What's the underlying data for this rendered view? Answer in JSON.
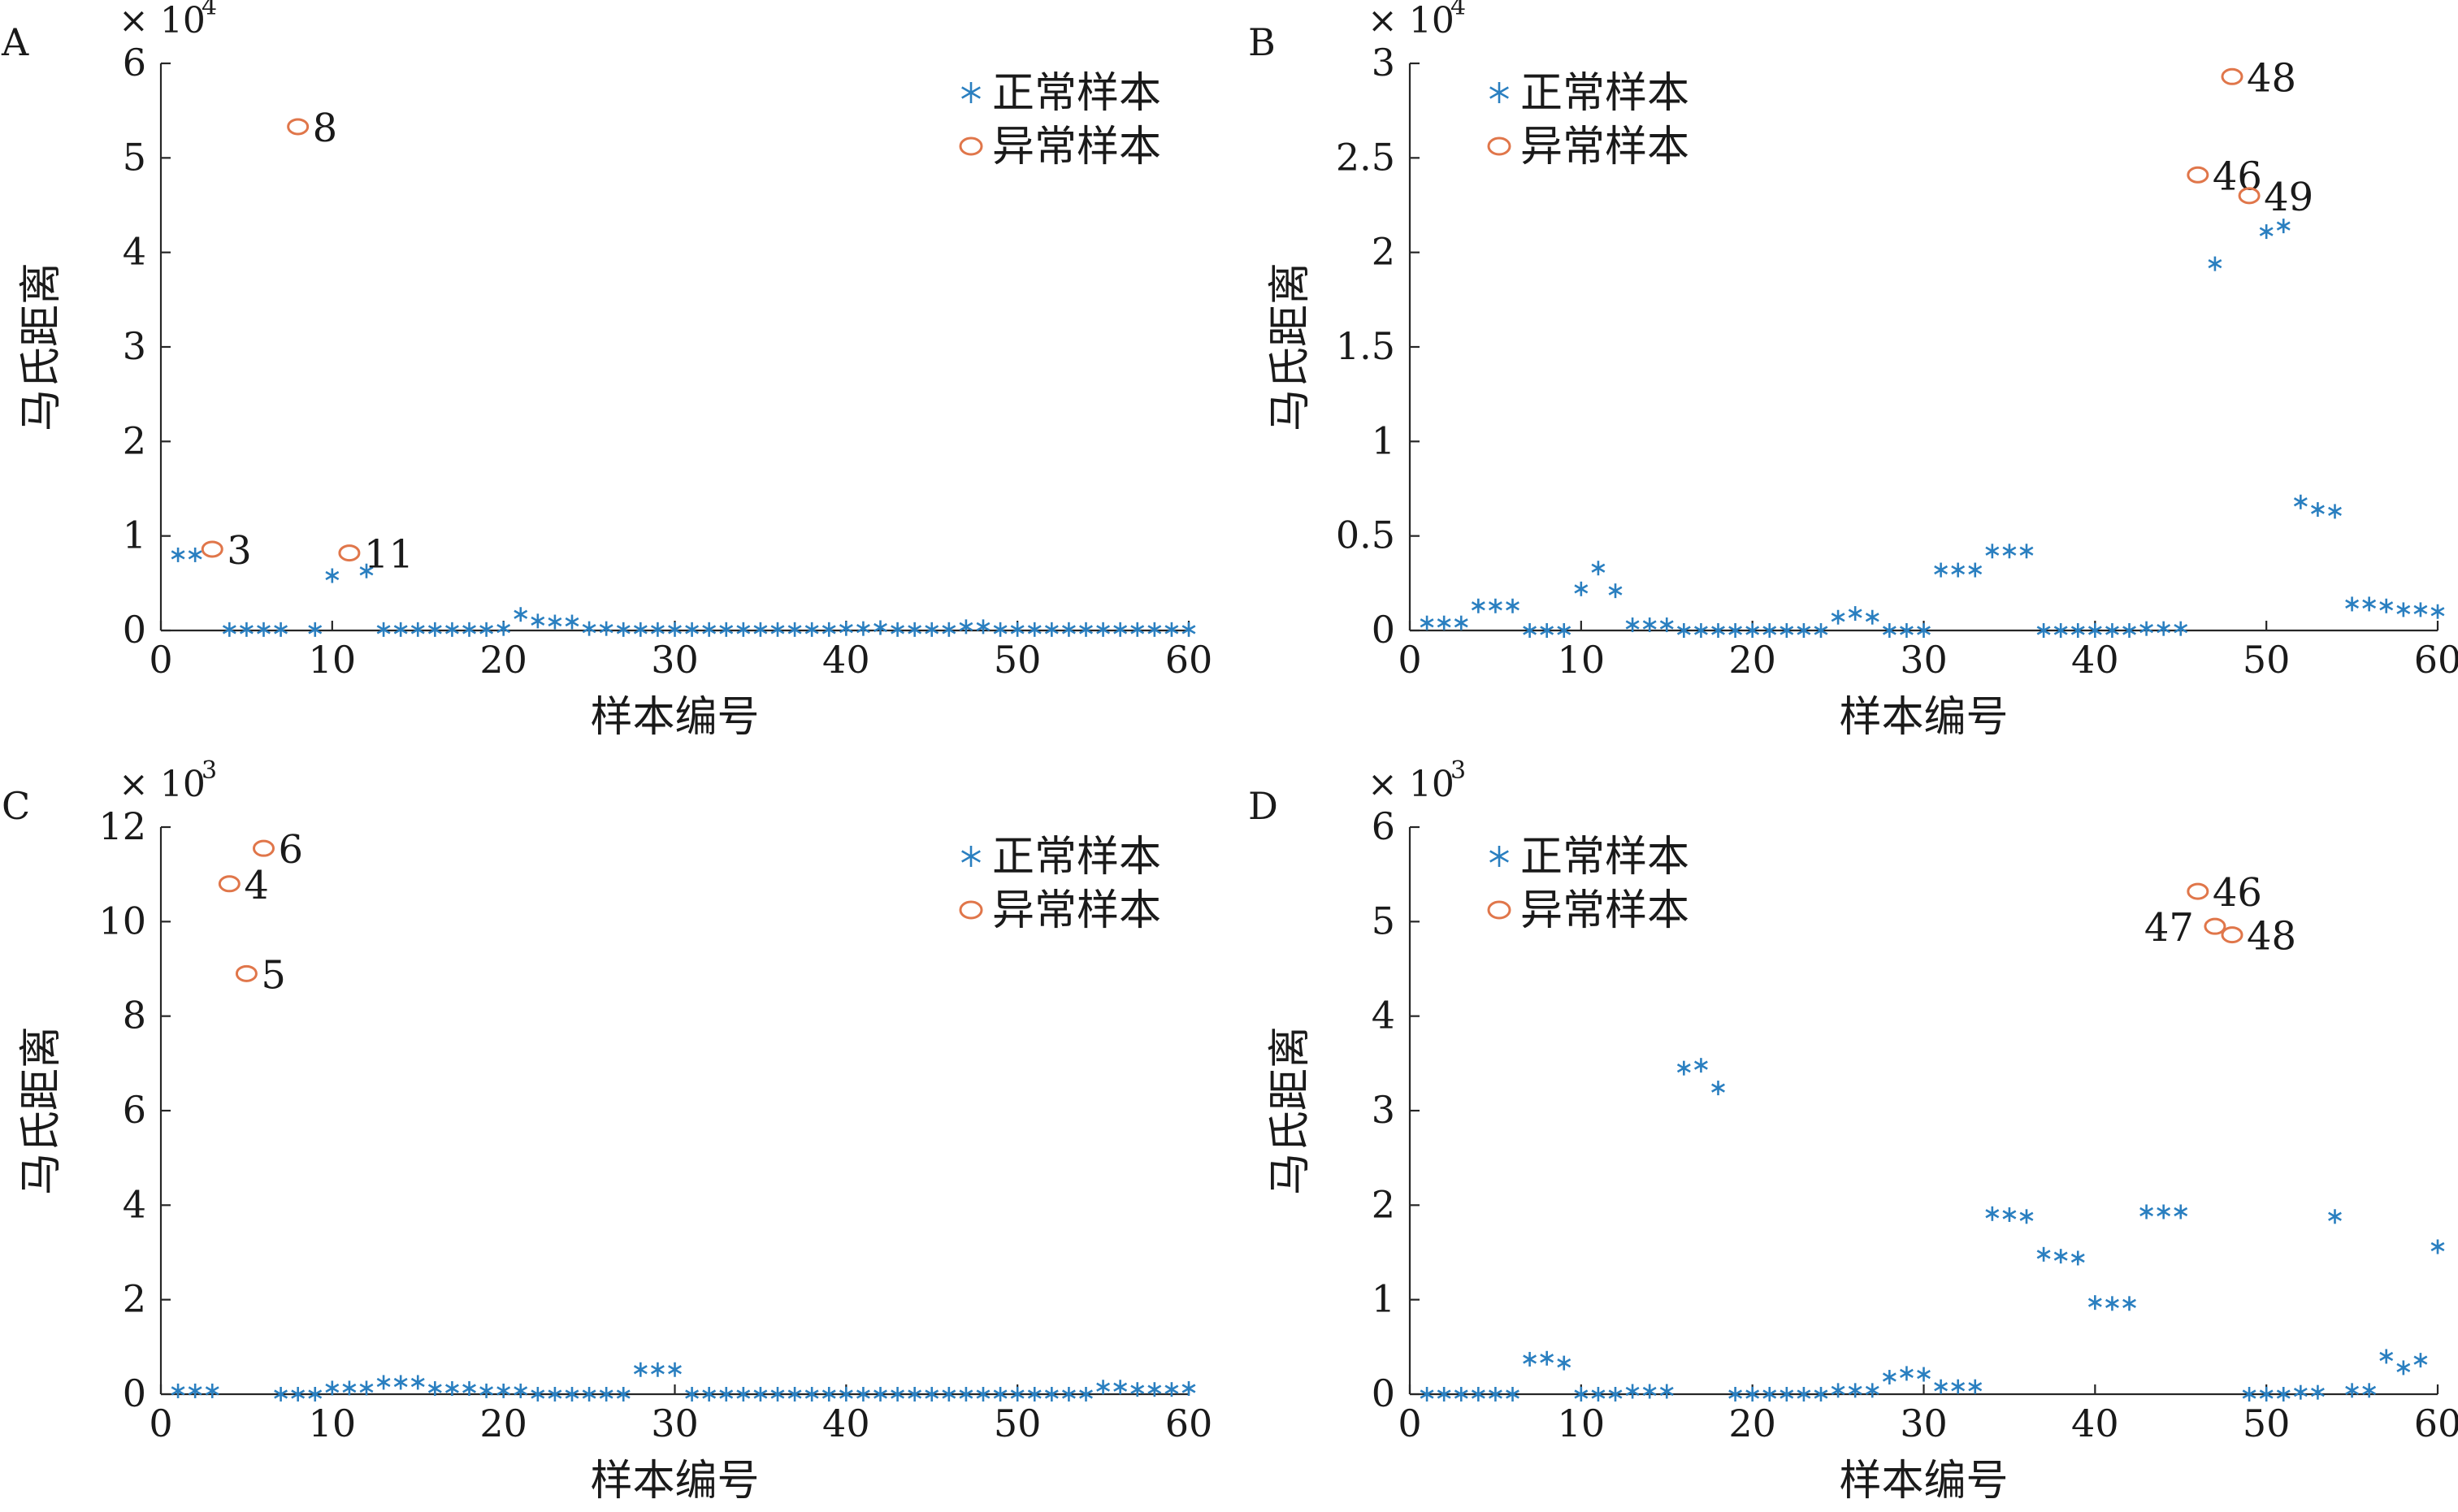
{
  "chart_data": [
    {
      "type": "scatter",
      "panel": "A",
      "exponent": "× 10",
      "exponent_power": "4",
      "xlabel": "样本编号",
      "ylabel": "马氏距离",
      "xlim": [
        0,
        60
      ],
      "ylim": [
        0,
        6
      ],
      "xticks": [
        0,
        10,
        20,
        30,
        40,
        50,
        60
      ],
      "yticks": [
        0,
        1,
        2,
        3,
        4,
        5,
        6
      ],
      "ytick_labels": [
        "0",
        "1",
        "2",
        "3",
        "4",
        "5",
        "6"
      ],
      "legend": [
        "正常样本",
        "异常样本"
      ],
      "legend_position": "top-right",
      "colors": {
        "normal": "#2a7fc0",
        "outlier": "#e0764a"
      },
      "normal_points": [
        [
          1,
          0.8
        ],
        [
          2,
          0.8
        ],
        [
          4,
          0.01
        ],
        [
          5,
          0.01
        ],
        [
          6,
          0.01
        ],
        [
          7,
          0.01
        ],
        [
          9,
          0.01
        ],
        [
          10,
          0.58
        ],
        [
          12,
          0.63
        ],
        [
          13,
          0.01
        ],
        [
          14,
          0.01
        ],
        [
          15,
          0.01
        ],
        [
          16,
          0.01
        ],
        [
          17,
          0.01
        ],
        [
          18,
          0.01
        ],
        [
          19,
          0.01
        ],
        [
          20,
          0.02
        ],
        [
          21,
          0.17
        ],
        [
          22,
          0.1
        ],
        [
          23,
          0.09
        ],
        [
          24,
          0.09
        ],
        [
          25,
          0.02
        ],
        [
          26,
          0.02
        ],
        [
          27,
          0.01
        ],
        [
          28,
          0.01
        ],
        [
          29,
          0.01
        ],
        [
          30,
          0.01
        ],
        [
          31,
          0.01
        ],
        [
          32,
          0.01
        ],
        [
          33,
          0.01
        ],
        [
          34,
          0.01
        ],
        [
          35,
          0.01
        ],
        [
          36,
          0.01
        ],
        [
          37,
          0.01
        ],
        [
          38,
          0.01
        ],
        [
          39,
          0.01
        ],
        [
          40,
          0.02
        ],
        [
          41,
          0.02
        ],
        [
          42,
          0.03
        ],
        [
          43,
          0.01
        ],
        [
          44,
          0.01
        ],
        [
          45,
          0.01
        ],
        [
          46,
          0.01
        ],
        [
          47,
          0.04
        ],
        [
          48,
          0.04
        ],
        [
          49,
          0.01
        ],
        [
          50,
          0.01
        ],
        [
          51,
          0.01
        ],
        [
          52,
          0.01
        ],
        [
          53,
          0.01
        ],
        [
          54,
          0.01
        ],
        [
          55,
          0.01
        ],
        [
          56,
          0.01
        ],
        [
          57,
          0.01
        ],
        [
          58,
          0.01
        ],
        [
          59,
          0.01
        ],
        [
          60,
          0.01
        ]
      ],
      "outlier_points": [
        {
          "x": 3,
          "y": 0.86,
          "label": "3"
        },
        {
          "x": 8,
          "y": 5.33,
          "label": "8"
        },
        {
          "x": 11,
          "y": 0.82,
          "label": "11"
        }
      ]
    },
    {
      "type": "scatter",
      "panel": "B",
      "exponent": "× 10",
      "exponent_power": "4",
      "xlabel": "样本编号",
      "ylabel": "马氏距离",
      "xlim": [
        0,
        60
      ],
      "ylim": [
        0,
        3
      ],
      "xticks": [
        0,
        10,
        20,
        30,
        40,
        50,
        60
      ],
      "yticks": [
        0,
        0.5,
        1,
        1.5,
        2,
        2.5,
        3
      ],
      "ytick_labels": [
        "0",
        "0.5",
        "1",
        "1.5",
        "2",
        "2.5",
        "3"
      ],
      "legend": [
        "正常样本",
        "异常样本"
      ],
      "legend_position": "top-left",
      "colors": {
        "normal": "#2a7fc0",
        "outlier": "#e0764a"
      },
      "normal_points": [
        [
          1,
          0.04
        ],
        [
          2,
          0.04
        ],
        [
          3,
          0.04
        ],
        [
          4,
          0.13
        ],
        [
          5,
          0.13
        ],
        [
          6,
          0.13
        ],
        [
          7,
          0.0
        ],
        [
          8,
          0.0
        ],
        [
          9,
          0.0
        ],
        [
          10,
          0.22
        ],
        [
          11,
          0.33
        ],
        [
          12,
          0.21
        ],
        [
          13,
          0.03
        ],
        [
          14,
          0.03
        ],
        [
          15,
          0.03
        ],
        [
          16,
          0.0
        ],
        [
          17,
          0.0
        ],
        [
          18,
          0.0
        ],
        [
          19,
          0.0
        ],
        [
          20,
          0.0
        ],
        [
          21,
          0.0
        ],
        [
          22,
          0.0
        ],
        [
          23,
          0.0
        ],
        [
          24,
          0.0
        ],
        [
          25,
          0.07
        ],
        [
          26,
          0.09
        ],
        [
          27,
          0.07
        ],
        [
          28,
          0.0
        ],
        [
          29,
          0.0
        ],
        [
          30,
          0.0
        ],
        [
          31,
          0.32
        ],
        [
          32,
          0.32
        ],
        [
          33,
          0.32
        ],
        [
          34,
          0.42
        ],
        [
          35,
          0.42
        ],
        [
          36,
          0.42
        ],
        [
          37,
          0.0
        ],
        [
          38,
          0.0
        ],
        [
          39,
          0.0
        ],
        [
          40,
          0.0
        ],
        [
          41,
          0.0
        ],
        [
          42,
          0.0
        ],
        [
          43,
          0.01
        ],
        [
          44,
          0.01
        ],
        [
          45,
          0.01
        ],
        [
          47,
          1.94
        ],
        [
          50,
          2.11
        ],
        [
          51,
          2.14
        ],
        [
          52,
          0.68
        ],
        [
          53,
          0.64
        ],
        [
          54,
          0.63
        ],
        [
          55,
          0.14
        ],
        [
          56,
          0.14
        ],
        [
          57,
          0.13
        ],
        [
          58,
          0.11
        ],
        [
          59,
          0.11
        ],
        [
          60,
          0.1
        ]
      ],
      "outlier_points": [
        {
          "x": 46,
          "y": 2.41,
          "label": "46"
        },
        {
          "x": 48,
          "y": 2.93,
          "label": "48"
        },
        {
          "x": 49,
          "y": 2.3,
          "label": "49"
        }
      ]
    },
    {
      "type": "scatter",
      "panel": "C",
      "exponent": "× 10",
      "exponent_power": "3",
      "xlabel": "样本编号",
      "ylabel": "马氏距离",
      "xlim": [
        0,
        60
      ],
      "ylim": [
        0,
        12
      ],
      "xticks": [
        0,
        10,
        20,
        30,
        40,
        50,
        60
      ],
      "yticks": [
        0,
        2,
        4,
        6,
        8,
        10,
        12
      ],
      "ytick_labels": [
        "0",
        "2",
        "4",
        "6",
        "8",
        "10",
        "12"
      ],
      "legend": [
        "正常样本",
        "异常样本"
      ],
      "legend_position": "top-right",
      "colors": {
        "normal": "#2a7fc0",
        "outlier": "#e0764a"
      },
      "normal_points": [
        [
          1,
          0.07
        ],
        [
          2,
          0.07
        ],
        [
          3,
          0.07
        ],
        [
          7,
          0.0
        ],
        [
          8,
          0.0
        ],
        [
          9,
          0.0
        ],
        [
          10,
          0.13
        ],
        [
          11,
          0.13
        ],
        [
          12,
          0.13
        ],
        [
          13,
          0.25
        ],
        [
          14,
          0.25
        ],
        [
          15,
          0.25
        ],
        [
          16,
          0.12
        ],
        [
          17,
          0.12
        ],
        [
          18,
          0.12
        ],
        [
          19,
          0.07
        ],
        [
          20,
          0.07
        ],
        [
          21,
          0.07
        ],
        [
          22,
          0.0
        ],
        [
          23,
          0.0
        ],
        [
          24,
          0.0
        ],
        [
          25,
          0.0
        ],
        [
          26,
          0.0
        ],
        [
          27,
          0.0
        ],
        [
          28,
          0.52
        ],
        [
          29,
          0.52
        ],
        [
          30,
          0.52
        ],
        [
          31,
          0.0
        ],
        [
          32,
          0.0
        ],
        [
          33,
          0.0
        ],
        [
          34,
          0.0
        ],
        [
          35,
          0.0
        ],
        [
          36,
          0.0
        ],
        [
          37,
          0.0
        ],
        [
          38,
          0.0
        ],
        [
          39,
          0.0
        ],
        [
          40,
          0.0
        ],
        [
          41,
          0.0
        ],
        [
          42,
          0.0
        ],
        [
          43,
          0.0
        ],
        [
          44,
          0.0
        ],
        [
          45,
          0.0
        ],
        [
          46,
          0.0
        ],
        [
          47,
          0.0
        ],
        [
          48,
          0.0
        ],
        [
          49,
          0.0
        ],
        [
          50,
          0.0
        ],
        [
          51,
          0.0
        ],
        [
          52,
          0.0
        ],
        [
          53,
          0.0
        ],
        [
          54,
          0.0
        ],
        [
          55,
          0.15
        ],
        [
          56,
          0.15
        ],
        [
          57,
          0.1
        ],
        [
          58,
          0.1
        ],
        [
          59,
          0.1
        ],
        [
          60,
          0.12
        ]
      ],
      "outlier_points": [
        {
          "x": 4,
          "y": 10.8,
          "label": "4"
        },
        {
          "x": 5,
          "y": 8.9,
          "label": "5"
        },
        {
          "x": 6,
          "y": 11.55,
          "label": "6"
        }
      ]
    },
    {
      "type": "scatter",
      "panel": "D",
      "exponent": "× 10",
      "exponent_power": "3",
      "xlabel": "样本编号",
      "ylabel": "马氏距离",
      "xlim": [
        0,
        60
      ],
      "ylim": [
        0,
        6
      ],
      "xticks": [
        0,
        10,
        20,
        30,
        40,
        50,
        60
      ],
      "yticks": [
        0,
        1,
        2,
        3,
        4,
        5,
        6
      ],
      "ytick_labels": [
        "0",
        "1",
        "2",
        "3",
        "4",
        "5",
        "6"
      ],
      "legend": [
        "正常样本",
        "异常样本"
      ],
      "legend_position": "top-left",
      "colors": {
        "normal": "#2a7fc0",
        "outlier": "#e0764a"
      },
      "normal_points": [
        [
          1,
          0.0
        ],
        [
          2,
          0.0
        ],
        [
          3,
          0.0
        ],
        [
          4,
          0.0
        ],
        [
          5,
          0.0
        ],
        [
          6,
          0.0
        ],
        [
          7,
          0.37
        ],
        [
          8,
          0.38
        ],
        [
          9,
          0.33
        ],
        [
          10,
          0.0
        ],
        [
          11,
          0.0
        ],
        [
          12,
          0.0
        ],
        [
          13,
          0.03
        ],
        [
          14,
          0.03
        ],
        [
          15,
          0.03
        ],
        [
          16,
          3.45
        ],
        [
          17,
          3.48
        ],
        [
          18,
          3.24
        ],
        [
          19,
          0.0
        ],
        [
          20,
          0.0
        ],
        [
          21,
          0.0
        ],
        [
          22,
          0.0
        ],
        [
          23,
          0.0
        ],
        [
          24,
          0.0
        ],
        [
          25,
          0.04
        ],
        [
          26,
          0.04
        ],
        [
          27,
          0.04
        ],
        [
          28,
          0.18
        ],
        [
          29,
          0.22
        ],
        [
          30,
          0.21
        ],
        [
          31,
          0.08
        ],
        [
          32,
          0.08
        ],
        [
          33,
          0.08
        ],
        [
          34,
          1.91
        ],
        [
          35,
          1.9
        ],
        [
          36,
          1.88
        ],
        [
          37,
          1.48
        ],
        [
          38,
          1.46
        ],
        [
          39,
          1.44
        ],
        [
          40,
          0.97
        ],
        [
          41,
          0.96
        ],
        [
          42,
          0.96
        ],
        [
          43,
          1.93
        ],
        [
          44,
          1.93
        ],
        [
          45,
          1.93
        ],
        [
          49,
          0.0
        ],
        [
          50,
          0.0
        ],
        [
          51,
          0.0
        ],
        [
          52,
          0.02
        ],
        [
          53,
          0.02
        ],
        [
          54,
          1.88
        ],
        [
          55,
          0.04
        ],
        [
          56,
          0.04
        ],
        [
          57,
          0.4
        ],
        [
          58,
          0.28
        ],
        [
          59,
          0.36
        ],
        [
          60,
          1.56
        ]
      ],
      "outlier_points": [
        {
          "x": 46,
          "y": 5.32,
          "label": "46"
        },
        {
          "x": 47,
          "y": 4.95,
          "label": "47",
          "label_side": "left"
        },
        {
          "x": 48,
          "y": 4.86,
          "label": "48"
        }
      ]
    }
  ]
}
